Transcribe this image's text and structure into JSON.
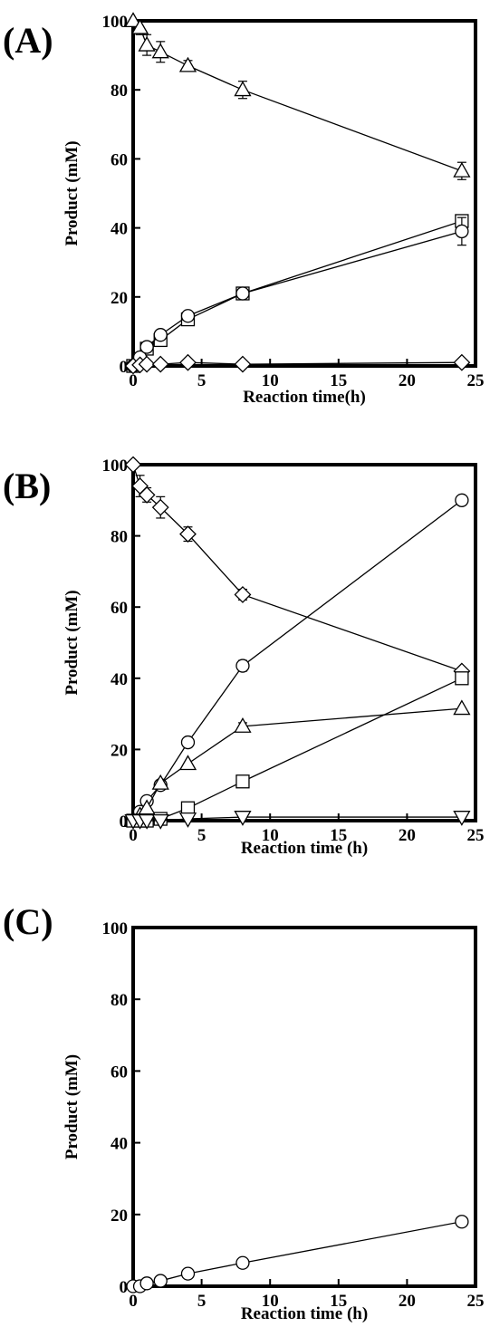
{
  "chart_data": [
    {
      "type": "line",
      "panel_label": "(A)",
      "xlabel": "Reaction time(h)",
      "ylabel": "Product (mM)",
      "xlim": [
        0,
        25
      ],
      "ylim": [
        0,
        100
      ],
      "xticks": [
        "0",
        "5",
        "10",
        "15",
        "20",
        "25"
      ],
      "yticks": [
        "0",
        "20",
        "40",
        "60",
        "80",
        "100"
      ],
      "grid": false,
      "series": [
        {
          "marker": "triangle-up",
          "points": [
            [
              0,
              100
            ],
            [
              0.5,
              98
            ],
            [
              1,
              93
            ],
            [
              2,
              91
            ],
            [
              4,
              87
            ],
            [
              8,
              80
            ],
            [
              24,
              56.5
            ]
          ],
          "errors": [
            0,
            2,
            3,
            3,
            1.5,
            2.5,
            2.5
          ]
        },
        {
          "marker": "square",
          "points": [
            [
              0,
              0
            ],
            [
              0.5,
              2
            ],
            [
              1,
              5
            ],
            [
              2,
              7.5
            ],
            [
              4,
              13.5
            ],
            [
              8,
              21
            ],
            [
              24,
              42
            ]
          ],
          "errors": [
            0,
            0,
            0,
            0,
            0,
            0,
            0
          ]
        },
        {
          "marker": "circle",
          "points": [
            [
              0,
              0
            ],
            [
              0.5,
              2.5
            ],
            [
              1,
              5.5
            ],
            [
              2,
              9
            ],
            [
              4,
              14.5
            ],
            [
              8,
              21
            ],
            [
              24,
              39
            ]
          ],
          "errors": [
            0,
            0,
            0,
            0,
            0,
            0,
            4
          ]
        },
        {
          "marker": "diamond",
          "points": [
            [
              0,
              0
            ],
            [
              0.5,
              0.3
            ],
            [
              1,
              0.5
            ],
            [
              2,
              0.5
            ],
            [
              4,
              1
            ],
            [
              8,
              0.5
            ],
            [
              24,
              1
            ]
          ],
          "errors": [
            0,
            0,
            0,
            0,
            0,
            0,
            0
          ]
        }
      ]
    },
    {
      "type": "line",
      "panel_label": "(B)",
      "xlabel": "Reaction time (h)",
      "ylabel": "Product (mM)",
      "xlim": [
        0,
        25
      ],
      "ylim": [
        0,
        100
      ],
      "xticks": [
        "0",
        "5",
        "10",
        "15",
        "20",
        "25"
      ],
      "yticks": [
        "0",
        "20",
        "40",
        "60",
        "80",
        "100"
      ],
      "grid": false,
      "series": [
        {
          "marker": "diamond",
          "points": [
            [
              0,
              100
            ],
            [
              0.5,
              94
            ],
            [
              1,
              91.5
            ],
            [
              2,
              88
            ],
            [
              4,
              80.5
            ],
            [
              8,
              63.5
            ],
            [
              24,
              42
            ]
          ],
          "errors": [
            0,
            3,
            2,
            3,
            2,
            1.5,
            0
          ]
        },
        {
          "marker": "circle",
          "points": [
            [
              0,
              0
            ],
            [
              0.5,
              2.5
            ],
            [
              1,
              5.5
            ],
            [
              2,
              10
            ],
            [
              4,
              22
            ],
            [
              8,
              43.5
            ],
            [
              24,
              90
            ]
          ],
          "errors": [
            0,
            0,
            0,
            0,
            0,
            1.5,
            0
          ]
        },
        {
          "marker": "triangle-up",
          "points": [
            [
              0,
              0
            ],
            [
              0.5,
              1.5
            ],
            [
              1,
              3.5
            ],
            [
              2,
              10.5
            ],
            [
              4,
              16
            ],
            [
              8,
              26.5
            ],
            [
              24,
              31.5
            ]
          ],
          "errors": [
            0,
            0,
            0,
            0,
            0,
            1,
            0
          ]
        },
        {
          "marker": "square",
          "points": [
            [
              0,
              0
            ],
            [
              0.5,
              0
            ],
            [
              1,
              0
            ],
            [
              2,
              0.5
            ],
            [
              4,
              3.5
            ],
            [
              8,
              11
            ],
            [
              24,
              40
            ]
          ],
          "errors": [
            0,
            0,
            0,
            0,
            0,
            0,
            0
          ]
        },
        {
          "marker": "triangle-down",
          "points": [
            [
              0,
              0
            ],
            [
              0.5,
              0
            ],
            [
              1,
              0
            ],
            [
              2,
              0
            ],
            [
              4,
              0.5
            ],
            [
              8,
              1
            ],
            [
              24,
              1
            ]
          ],
          "errors": [
            0,
            0,
            0,
            0,
            0,
            0,
            0
          ]
        }
      ]
    },
    {
      "type": "line",
      "panel_label": "(C)",
      "xlabel": "Reaction time (h)",
      "ylabel": "Product (mM)",
      "xlim": [
        0,
        25
      ],
      "ylim": [
        0,
        100
      ],
      "xticks": [
        "0",
        "5",
        "10",
        "15",
        "20",
        "25"
      ],
      "yticks": [
        "0",
        "20",
        "40",
        "60",
        "80",
        "100"
      ],
      "grid": false,
      "series": [
        {
          "marker": "circle",
          "points": [
            [
              0,
              0
            ],
            [
              0.5,
              0
            ],
            [
              1,
              0.8
            ],
            [
              2,
              1.5
            ],
            [
              4,
              3.5
            ],
            [
              8,
              6.5
            ],
            [
              24,
              18
            ]
          ],
          "errors": [
            0,
            0,
            0,
            0,
            0,
            0,
            0
          ]
        }
      ]
    }
  ]
}
